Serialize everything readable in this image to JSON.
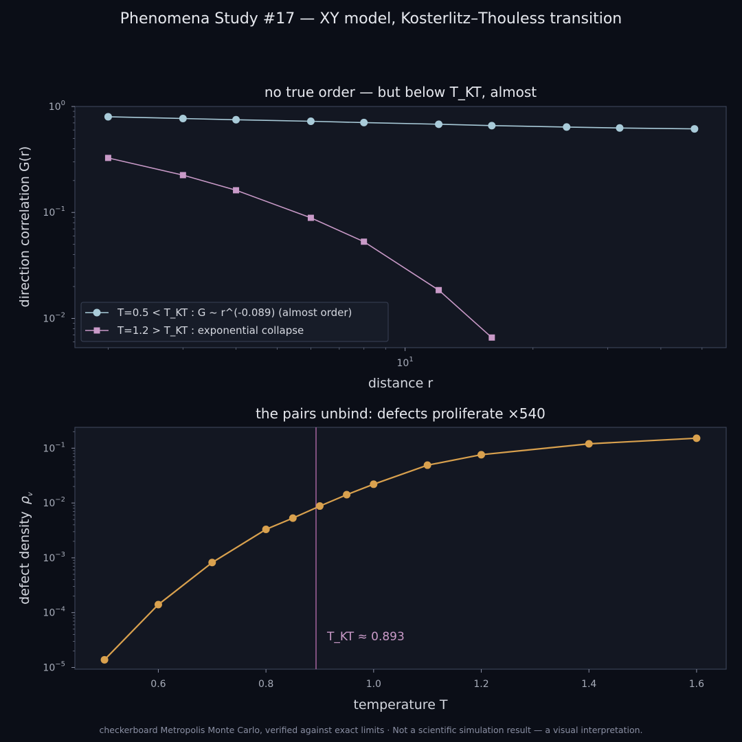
{
  "suptitle": "Phenomena Study #17 — XY model, Kosterlitz–Thouless transition",
  "footer": "checkerboard Metropolis Monte Carlo, verified against exact limits  ·  Not a scientific simulation result — a visual interpretation.",
  "colors": {
    "background": "#0b0e17",
    "axes_bg": "#131722",
    "spine": "#3a4256",
    "series_low_T": "#a9cbd9",
    "series_high_T": "#c99ac8",
    "defect_curve": "#d9a14e",
    "tkt_line": "#b06aa8"
  },
  "chart_data": [
    {
      "type": "line",
      "title": "no true order — but below T_KT, almost",
      "xlabel": "distance r",
      "ylabel": "direction correlation G(r)",
      "xscale": "log",
      "yscale": "log",
      "xlim": [
        1.67,
        57
      ],
      "ylim": [
        0.0053,
        1.0
      ],
      "xticks": [
        {
          "value": 10,
          "base": "10",
          "exp": "1"
        }
      ],
      "yticks": [
        {
          "value": 1.0,
          "base": "10",
          "exp": "0"
        },
        {
          "value": 0.1,
          "base": "10",
          "exp": "−1"
        },
        {
          "value": 0.01,
          "base": "10",
          "exp": "−2"
        }
      ],
      "legend_position": "lower-left",
      "series": [
        {
          "name": "T=0.5 < T_KT :  G ~ r^(-0.089)  (almost order)",
          "marker": "circle",
          "x": [
            2,
            3,
            4,
            6,
            8,
            12,
            16,
            24,
            32,
            48
          ],
          "y": [
            0.8,
            0.77,
            0.75,
            0.725,
            0.705,
            0.68,
            0.66,
            0.64,
            0.627,
            0.615
          ]
        },
        {
          "name": "T=1.2 > T_KT :  exponential collapse",
          "marker": "square",
          "x": [
            2,
            3,
            4,
            6,
            8,
            12,
            16
          ],
          "y": [
            0.327,
            0.225,
            0.162,
            0.089,
            0.053,
            0.0185,
            0.0066
          ]
        }
      ]
    },
    {
      "type": "line",
      "title": "the pairs unbind: defects proliferate ×540",
      "xlabel": "temperature T",
      "ylabel_text": "defect density",
      "ylabel_symbol": "ρ",
      "ylabel_sub": "v",
      "xscale": "linear",
      "yscale": "log",
      "xlim": [
        0.445,
        1.655
      ],
      "ylim": [
        9.3e-06,
        0.24
      ],
      "xticks": [
        {
          "value": 0.6,
          "label": "0.6"
        },
        {
          "value": 0.8,
          "label": "0.8"
        },
        {
          "value": 1.0,
          "label": "1.0"
        },
        {
          "value": 1.2,
          "label": "1.2"
        },
        {
          "value": 1.4,
          "label": "1.4"
        },
        {
          "value": 1.6,
          "label": "1.6"
        }
      ],
      "yticks": [
        {
          "value": 0.1,
          "base": "10",
          "exp": "−1"
        },
        {
          "value": 0.01,
          "base": "10",
          "exp": "−2"
        },
        {
          "value": 0.001,
          "base": "10",
          "exp": "−3"
        },
        {
          "value": 0.0001,
          "base": "10",
          "exp": "−4"
        },
        {
          "value": 1e-05,
          "base": "10",
          "exp": "−5"
        }
      ],
      "series": [
        {
          "marker": "circle",
          "x": [
            0.5,
            0.6,
            0.7,
            0.8,
            0.85,
            0.9,
            0.95,
            1.0,
            1.1,
            1.2,
            1.4,
            1.6
          ],
          "y": [
            1.38e-05,
            0.00014,
            0.00082,
            0.0033,
            0.0053,
            0.0088,
            0.0142,
            0.022,
            0.049,
            0.076,
            0.12,
            0.152
          ]
        }
      ],
      "vline": {
        "x": 0.893,
        "label": "T_KT ≈ 0.893"
      }
    }
  ]
}
